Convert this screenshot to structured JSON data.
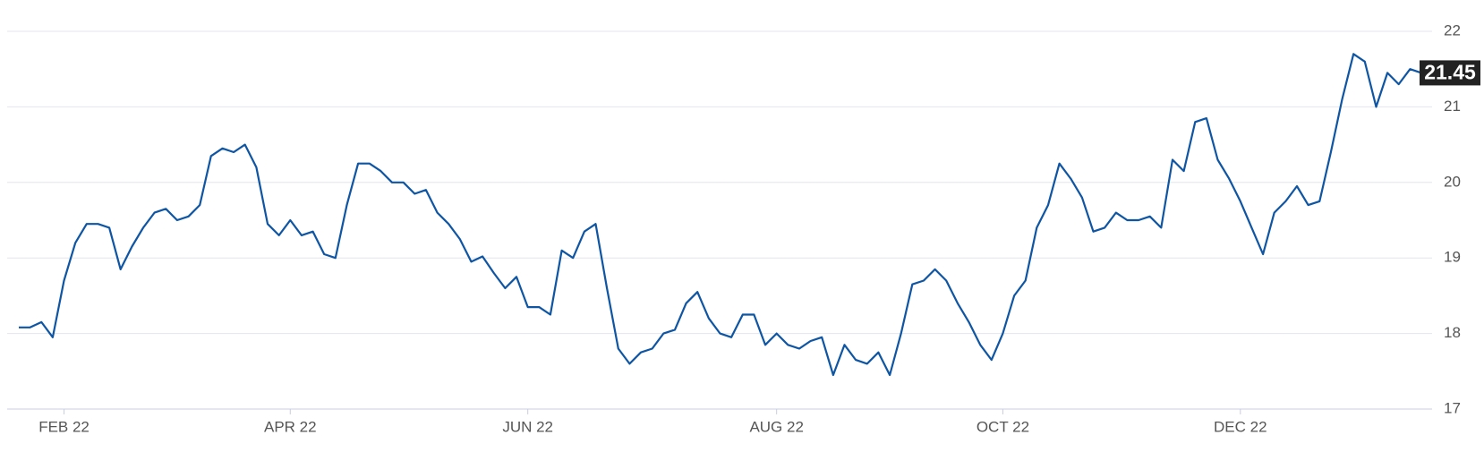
{
  "chart_data": {
    "type": "line",
    "categories": [
      null,
      null,
      null,
      null,
      "FEB 22",
      null,
      null,
      null,
      null,
      null,
      null,
      null,
      null,
      null,
      null,
      null,
      null,
      null,
      null,
      null,
      null,
      null,
      null,
      null,
      "APR 22",
      null,
      null,
      null,
      null,
      null,
      null,
      null,
      null,
      null,
      null,
      null,
      null,
      null,
      null,
      null,
      null,
      null,
      null,
      null,
      null,
      "JUN 22",
      null,
      null,
      null,
      null,
      null,
      null,
      null,
      null,
      null,
      null,
      null,
      null,
      null,
      null,
      null,
      null,
      null,
      null,
      null,
      null,
      null,
      "AUG 22",
      null,
      null,
      null,
      null,
      null,
      null,
      null,
      null,
      null,
      null,
      null,
      null,
      null,
      null,
      null,
      null,
      null,
      null,
      null,
      "OCT 22",
      null,
      null,
      null,
      null,
      null,
      null,
      null,
      null,
      null,
      null,
      null,
      null,
      null,
      null,
      null,
      null,
      null,
      null,
      null,
      null,
      "DEC 22",
      null,
      null,
      null,
      null,
      null,
      null,
      null,
      null,
      null,
      null,
      null,
      null,
      null,
      null,
      null,
      null
    ],
    "series": [
      {
        "color": "#0e55a4",
        "values": [
          18.08,
          18.08,
          18.15,
          17.95,
          18.7,
          19.2,
          19.45,
          19.45,
          19.4,
          18.85,
          19.15,
          19.4,
          19.6,
          19.65,
          19.5,
          19.55,
          19.7,
          20.35,
          20.45,
          20.4,
          20.5,
          20.2,
          19.45,
          19.3,
          19.5,
          19.3,
          19.35,
          19.05,
          19.0,
          19.7,
          20.25,
          20.25,
          20.15,
          20.0,
          20.0,
          19.85,
          19.9,
          19.6,
          19.45,
          19.25,
          18.95,
          19.02,
          18.8,
          18.6,
          18.75,
          18.35,
          18.35,
          18.25,
          19.1,
          19.0,
          19.35,
          19.45,
          18.6,
          17.8,
          17.6,
          17.75,
          17.8,
          18.0,
          18.05,
          18.4,
          18.55,
          18.2,
          18.0,
          17.95,
          18.25,
          18.25,
          17.85,
          18.0,
          17.85,
          17.8,
          17.9,
          17.95,
          17.45,
          17.85,
          17.65,
          17.6,
          17.75,
          17.45,
          18.0,
          18.65,
          18.7,
          18.85,
          18.7,
          18.4,
          18.15,
          17.85,
          17.65,
          18.0,
          18.5,
          18.7,
          19.4,
          19.7,
          20.25,
          20.05,
          19.8,
          19.35,
          19.4,
          19.6,
          19.5,
          19.5,
          19.55,
          19.4,
          20.3,
          20.15,
          20.8,
          20.85,
          20.3,
          20.05,
          19.75,
          19.4,
          19.05,
          19.6,
          19.75,
          19.95,
          19.7,
          19.75,
          20.4,
          21.1,
          21.7,
          21.6,
          21.0,
          21.45,
          21.3,
          21.5,
          21.45
        ]
      }
    ],
    "ylim": [
      17,
      22
    ],
    "yticks": [
      17,
      18,
      19,
      20,
      21,
      22
    ],
    "grid": true,
    "y_axis_side": "right"
  }
}
